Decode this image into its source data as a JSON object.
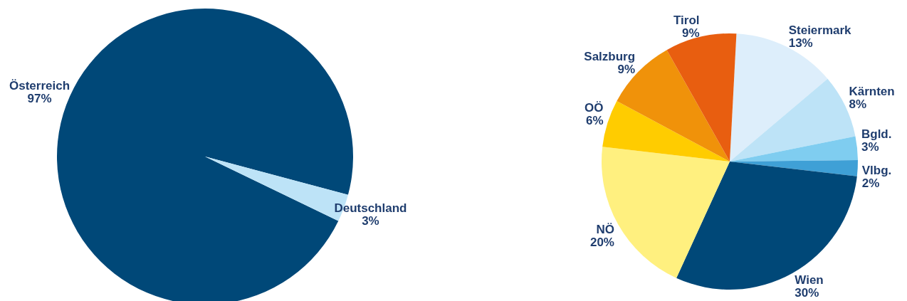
{
  "chart_data": [
    {
      "type": "pie",
      "categories": [
        "Österreich",
        "Deutschland"
      ],
      "values": [
        97,
        3
      ],
      "colors": [
        "#004878",
        "#bde3f7"
      ],
      "value_labels": [
        "97%",
        "3%"
      ]
    },
    {
      "type": "pie",
      "categories": [
        "Steiermark",
        "Kärnten",
        "Bgld.",
        "Vlbg.",
        "Wien",
        "NÖ",
        "OÖ",
        "Salzburg",
        "Tirol"
      ],
      "values": [
        13,
        8,
        3,
        2,
        30,
        20,
        6,
        9,
        9
      ],
      "colors": [
        "#ddeefb",
        "#bde3f7",
        "#7fcdf0",
        "#3fa0d6",
        "#004878",
        "#fff07f",
        "#ffcc00",
        "#f0920a",
        "#e85e10"
      ],
      "value_labels": [
        "13%",
        "8%",
        "3%",
        "2%",
        "30%",
        "20%",
        "6%",
        "9%",
        "9%"
      ]
    }
  ]
}
